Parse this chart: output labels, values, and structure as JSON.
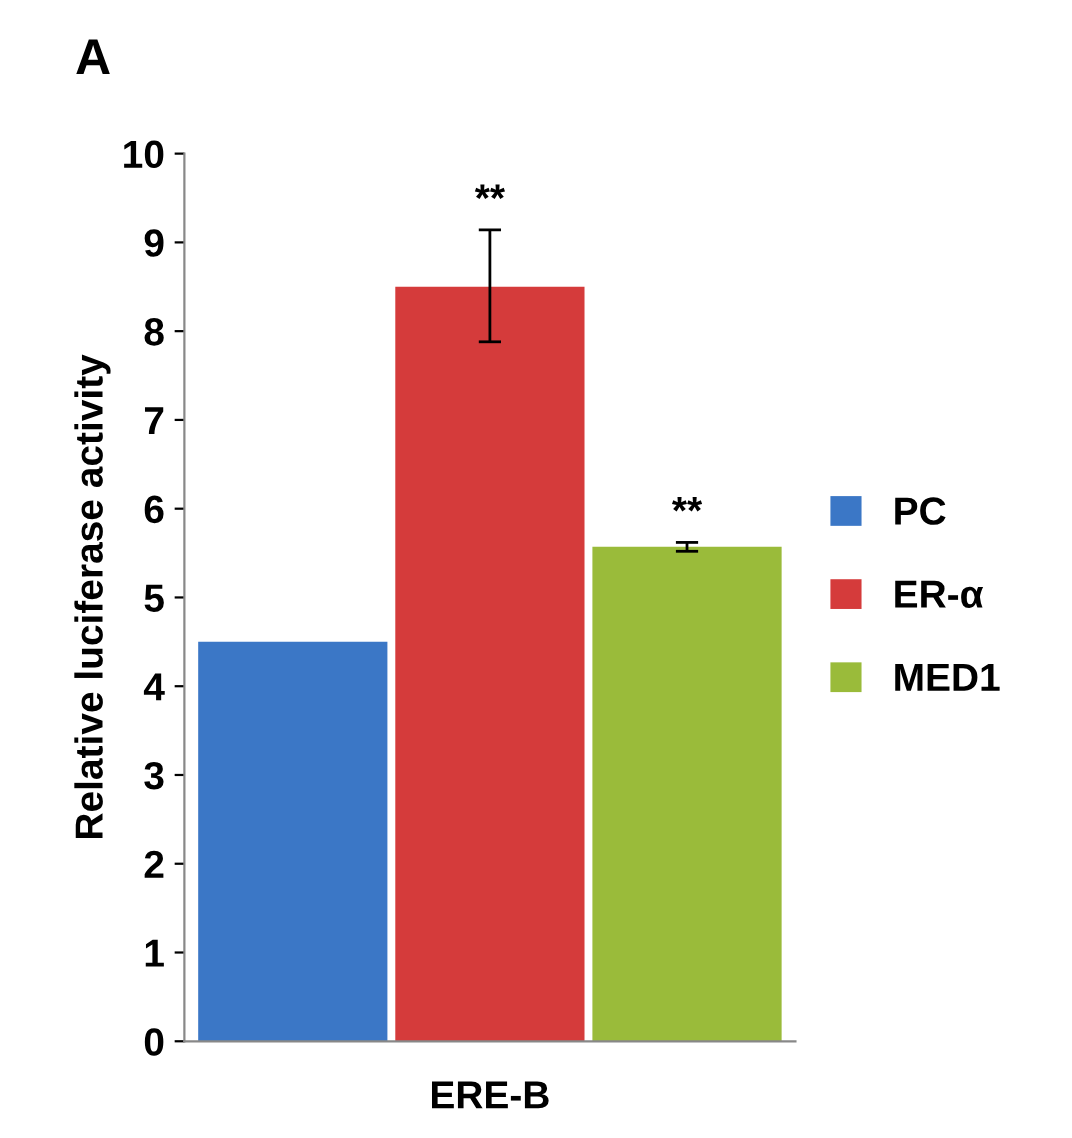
{
  "chart_data": {
    "type": "bar",
    "categories": [
      null,
      "ERE-B",
      null
    ],
    "ylabel": "Relative luciferase activity",
    "ylim": [
      0,
      10
    ],
    "yticks": [
      0,
      1,
      2,
      3,
      4,
      5,
      6,
      7,
      8,
      9,
      10
    ],
    "series": [
      {
        "name": "PC",
        "color": "#3b77c6",
        "values": [
          4.5,
          null,
          null
        ]
      },
      {
        "name": "ER-α",
        "color": "#d53b3b",
        "values": [
          null,
          8.5,
          null
        ],
        "errors": [
          null,
          [
            7.88,
            9.14
          ],
          null
        ],
        "value_labels": [
          null,
          "**",
          null
        ]
      },
      {
        "name": "MED1",
        "color": "#9abb3a",
        "values": [
          null,
          null,
          5.57
        ],
        "errors": [
          null,
          null,
          0.05
        ],
        "value_labels": [
          null,
          null,
          "**"
        ]
      }
    ],
    "annotations": [
      "A"
    ],
    "legend": "right",
    "grid": false
  }
}
